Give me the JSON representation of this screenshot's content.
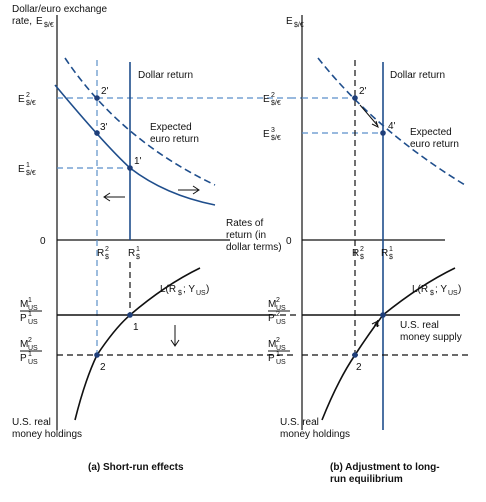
{
  "panel_a": {
    "y_axis_label": [
      "Dollar/euro exchange",
      "rate,"
    ],
    "y_axis_symbol": {
      "base": "E",
      "sub": "$/€"
    },
    "e_ticks": [
      {
        "base": "E",
        "sup": "2",
        "sub": "$/€"
      },
      {
        "base": "E",
        "sup": "1",
        "sub": "$/€"
      }
    ],
    "zero": "0",
    "dollar_return": "Dollar return",
    "expected_euro_return": [
      "Expected",
      "euro return"
    ],
    "points": [
      "2'",
      "3'",
      "1'"
    ],
    "x_axis_label": [
      "Rates of",
      "return (in",
      "dollar terms)"
    ],
    "r_ticks": [
      {
        "base": "R",
        "sup": "2",
        "sub": "$"
      },
      {
        "base": "R",
        "sup": "1",
        "sub": "$"
      }
    ],
    "money_demand": {
      "f": "L(R",
      "sub1": "$",
      "mid": "; Y",
      "sub2": "US",
      "close": ")"
    },
    "money_ticks": [
      {
        "num": {
          "base": "M",
          "sup": "1",
          "sub": "US"
        },
        "den": {
          "base": "P",
          "sup": "1",
          "sub": "US"
        }
      },
      {
        "num": {
          "base": "M",
          "sup": "2",
          "sub": "US"
        },
        "den": {
          "base": "P",
          "sup": "1",
          "sub": "US"
        }
      }
    ],
    "money_points": [
      "1",
      "2"
    ],
    "money_axis_label": [
      "U.S. real",
      "money holdings"
    ],
    "caption": [
      "(a) Short-run effects"
    ]
  },
  "panel_b": {
    "y_axis_symbol": {
      "base": "E",
      "sub": "$/€"
    },
    "e_ticks": [
      {
        "base": "E",
        "sup": "2",
        "sub": "$/€"
      },
      {
        "base": "E",
        "sup": "3",
        "sub": "$/€"
      }
    ],
    "zero": "0",
    "dollar_return": "Dollar return",
    "expected_euro_return": [
      "Expected",
      "euro return"
    ],
    "points": [
      "2'",
      "4'"
    ],
    "r_ticks": [
      {
        "base": "R",
        "sup": "2",
        "sub": "$"
      },
      {
        "base": "R",
        "sup": "1",
        "sub": "$"
      }
    ],
    "money_demand": {
      "f": "L(R",
      "sub1": "$",
      "mid": "; Y",
      "sub2": "US",
      "close": ")"
    },
    "money_ticks": [
      {
        "num": {
          "base": "M",
          "sup": "2",
          "sub": "US"
        },
        "den": {
          "base": "P",
          "sup": "2",
          "sub": "US"
        }
      },
      {
        "num": {
          "base": "M",
          "sup": "2",
          "sub": "US"
        },
        "den": {
          "base": "P",
          "sup": "1",
          "sub": "US"
        }
      }
    ],
    "money_supply": [
      "U.S. real",
      "money supply"
    ],
    "money_points": [
      "4",
      "2"
    ],
    "money_axis_label": [
      "U.S. real",
      "money holdings"
    ],
    "caption": [
      "(b) Adjustment to long-",
      "run equilibrium"
    ]
  }
}
